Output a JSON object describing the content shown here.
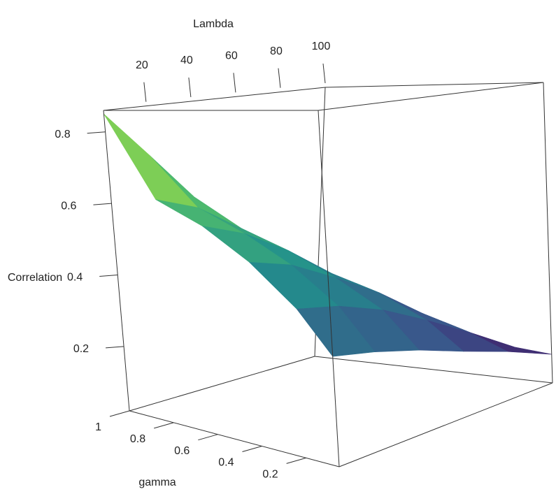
{
  "chart_data": {
    "type": "surface",
    "xlabel": "Lambda",
    "ylabel": "gamma",
    "zlabel": "Correlation",
    "x": [
      1,
      20,
      40,
      60,
      80,
      100
    ],
    "y": [
      0.05,
      0.2,
      0.4,
      0.6,
      0.8,
      1
    ],
    "z": [
      [
        0.28,
        0.26,
        0.23,
        0.19,
        0.15,
        0.1
      ],
      [
        0.38,
        0.36,
        0.32,
        0.26,
        0.19,
        0.11
      ],
      [
        0.48,
        0.45,
        0.39,
        0.32,
        0.23,
        0.12
      ],
      [
        0.56,
        0.52,
        0.45,
        0.36,
        0.26,
        0.13
      ],
      [
        0.62,
        0.58,
        0.5,
        0.4,
        0.28,
        0.14
      ],
      [
        0.85,
        0.72,
        0.58,
        0.44,
        0.3,
        0.15
      ]
    ],
    "xlim": [
      1,
      100
    ],
    "ylim": [
      0.05,
      1
    ],
    "zlim": [
      0.02,
      0.86
    ],
    "xticks": [
      20,
      40,
      60,
      80,
      100
    ],
    "yticks": [
      0.2,
      0.4,
      0.6,
      0.8,
      1
    ],
    "zticks": [
      0.2,
      0.4,
      0.6,
      0.8
    ],
    "colormap": [
      "#440154",
      "#3b528b",
      "#21908c",
      "#5dc863",
      "#fde725"
    ]
  }
}
